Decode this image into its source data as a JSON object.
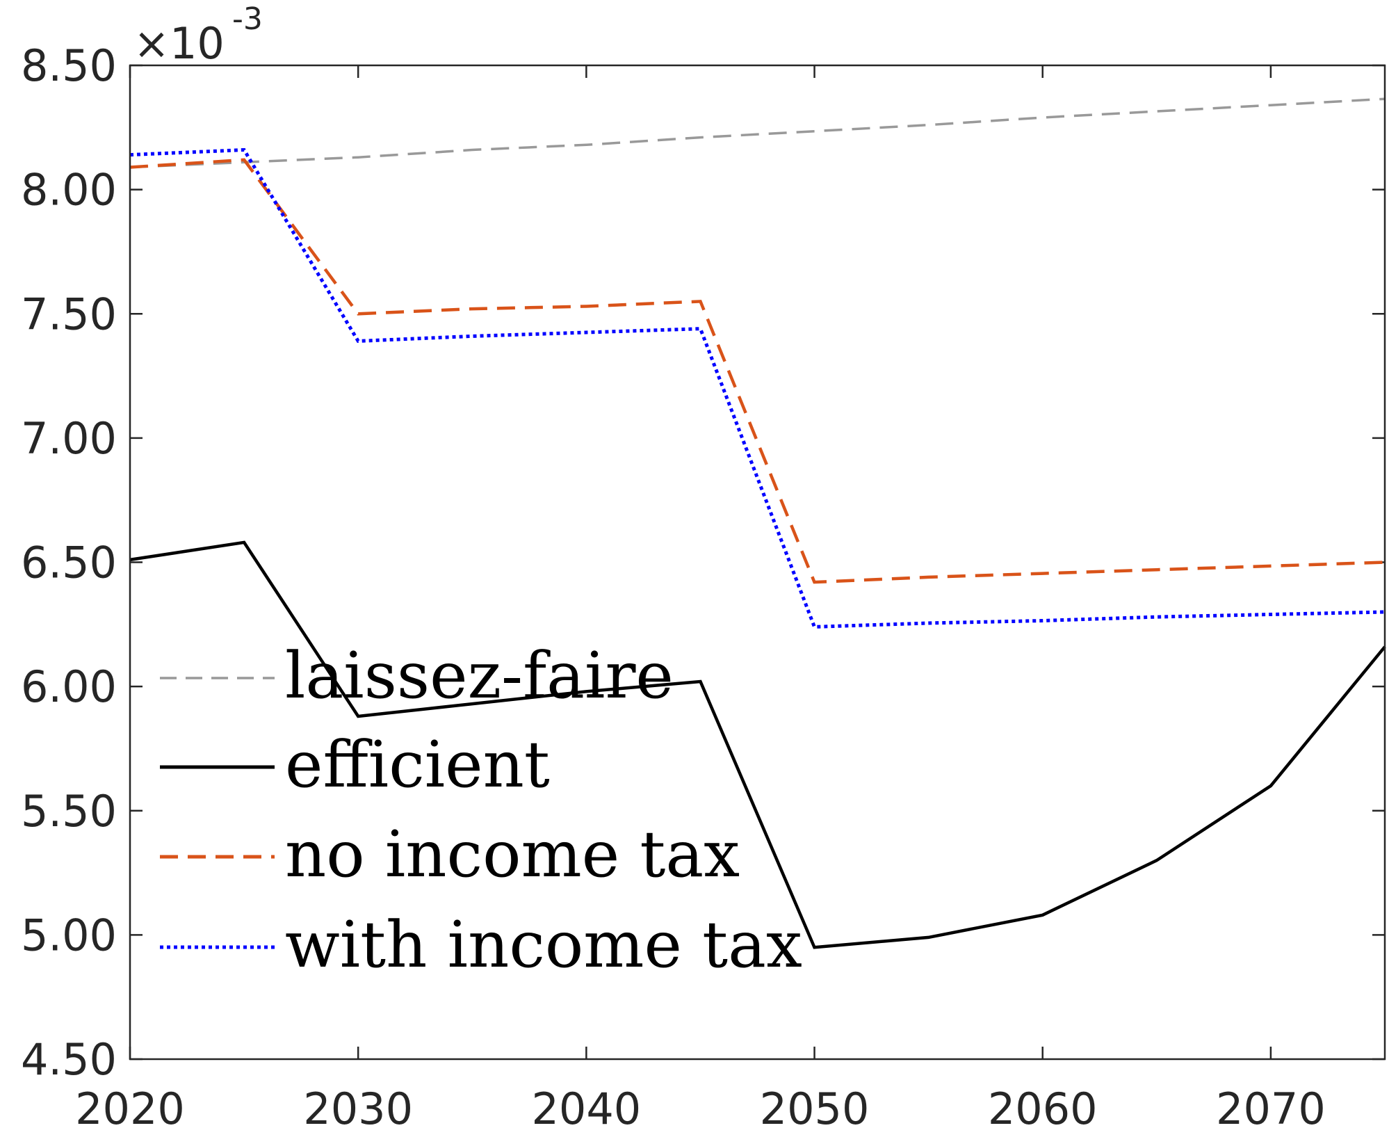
{
  "chart_data": {
    "type": "line",
    "title": "",
    "xlabel": "",
    "ylabel": "",
    "xlim": [
      2020,
      2075
    ],
    "ylim": [
      4.5,
      8.5
    ],
    "y_multiplier_base": "×10",
    "y_multiplier_exp": "-3",
    "x_ticks": [
      2020,
      2030,
      2040,
      2050,
      2060,
      2070
    ],
    "x_tick_labels": [
      "2020",
      "2030",
      "2040",
      "2050",
      "2060",
      "2070"
    ],
    "y_ticks": [
      4.5,
      5.0,
      5.5,
      6.0,
      6.5,
      7.0,
      7.5,
      8.0,
      8.5
    ],
    "y_tick_labels": [
      "4.50",
      "5.00",
      "5.50",
      "6.00",
      "6.50",
      "7.00",
      "7.50",
      "8.00",
      "8.50"
    ],
    "grid": false,
    "legend_position": "lower-left",
    "series": [
      {
        "name": "laissez-faire",
        "color": "#999999",
        "style": "dashed",
        "x": [
          2020,
          2025,
          2030,
          2035,
          2040,
          2045,
          2050,
          2055,
          2060,
          2065,
          2070,
          2075
        ],
        "y": [
          8.09,
          8.11,
          8.13,
          8.16,
          8.18,
          8.21,
          8.235,
          8.26,
          8.29,
          8.315,
          8.34,
          8.365
        ]
      },
      {
        "name": "efficient",
        "color": "#000000",
        "style": "solid",
        "x": [
          2020,
          2025,
          2030,
          2035,
          2040,
          2045,
          2050,
          2055,
          2060,
          2065,
          2070,
          2075
        ],
        "y": [
          6.51,
          6.58,
          5.88,
          5.93,
          5.98,
          6.02,
          4.95,
          4.99,
          5.08,
          5.3,
          5.6,
          6.16
        ]
      },
      {
        "name": "no income tax",
        "color": "#d95319",
        "style": "dashed",
        "x": [
          2020,
          2025,
          2030,
          2035,
          2040,
          2045,
          2050,
          2055,
          2060,
          2065,
          2070,
          2075
        ],
        "y": [
          8.09,
          8.12,
          7.5,
          7.52,
          7.53,
          7.55,
          6.42,
          6.44,
          6.455,
          6.47,
          6.485,
          6.5
        ]
      },
      {
        "name": "with income tax",
        "color": "#0000ff",
        "style": "dotted",
        "x": [
          2020,
          2025,
          2030,
          2035,
          2040,
          2045,
          2050,
          2055,
          2060,
          2065,
          2070,
          2075
        ],
        "y": [
          8.14,
          8.16,
          7.39,
          7.41,
          7.425,
          7.44,
          6.24,
          6.255,
          6.265,
          6.28,
          6.29,
          6.3
        ]
      }
    ]
  }
}
